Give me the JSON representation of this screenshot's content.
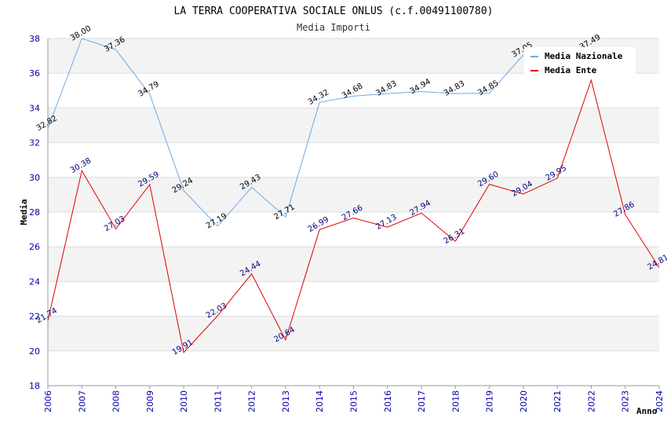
{
  "chart_data": {
    "type": "line",
    "title": "LA TERRA COOPERATIVA SOCIALE ONLUS (c.f.00491100780)",
    "subtitle": "Media Importi",
    "xlabel": "Anno",
    "ylabel": "Media",
    "ylim": [
      18,
      38
    ],
    "yticks": [
      "18",
      "20",
      "22",
      "24",
      "26",
      "28",
      "30",
      "32",
      "34",
      "36",
      "38"
    ],
    "x": [
      "2006",
      "2007",
      "2008",
      "2009",
      "2010",
      "2011",
      "2012",
      "2013",
      "2014",
      "2015",
      "2016",
      "2017",
      "2018",
      "2019",
      "2020",
      "2021",
      "2022",
      "2023",
      "2024"
    ],
    "grid": true,
    "legend_position": "top-right",
    "series": [
      {
        "name": "Media Nazionale",
        "color": "#6aaae8",
        "values": [
          32.82,
          38.0,
          37.36,
          34.79,
          29.24,
          27.19,
          29.43,
          27.71,
          34.32,
          34.68,
          34.83,
          34.94,
          34.83,
          34.85,
          37.05,
          null,
          37.49,
          null,
          null
        ],
        "labels": [
          "32.82",
          "38.00",
          "37.36",
          "34.79",
          "29.24",
          "27.19",
          "29.43",
          "27.71",
          "34.32",
          "34.68",
          "34.83",
          "34.94",
          "34.83",
          "34.85",
          "37.05",
          "",
          "37.49",
          "",
          ""
        ]
      },
      {
        "name": "Media Ente",
        "color": "#dd0000",
        "values": [
          21.74,
          30.38,
          27.03,
          29.59,
          19.91,
          22.03,
          24.44,
          20.64,
          26.99,
          27.66,
          27.13,
          27.94,
          26.31,
          29.6,
          29.04,
          29.95,
          35.6,
          27.86,
          24.81
        ],
        "labels": [
          "21.74",
          "30.38",
          "27.03",
          "29.59",
          "19.91",
          "22.03",
          "24.44",
          "20.64",
          "26.99",
          "27.66",
          "27.13",
          "27.94",
          "26.31",
          "29.60",
          "29.04",
          "29.95",
          "",
          "27.86",
          "24.81"
        ]
      }
    ]
  }
}
